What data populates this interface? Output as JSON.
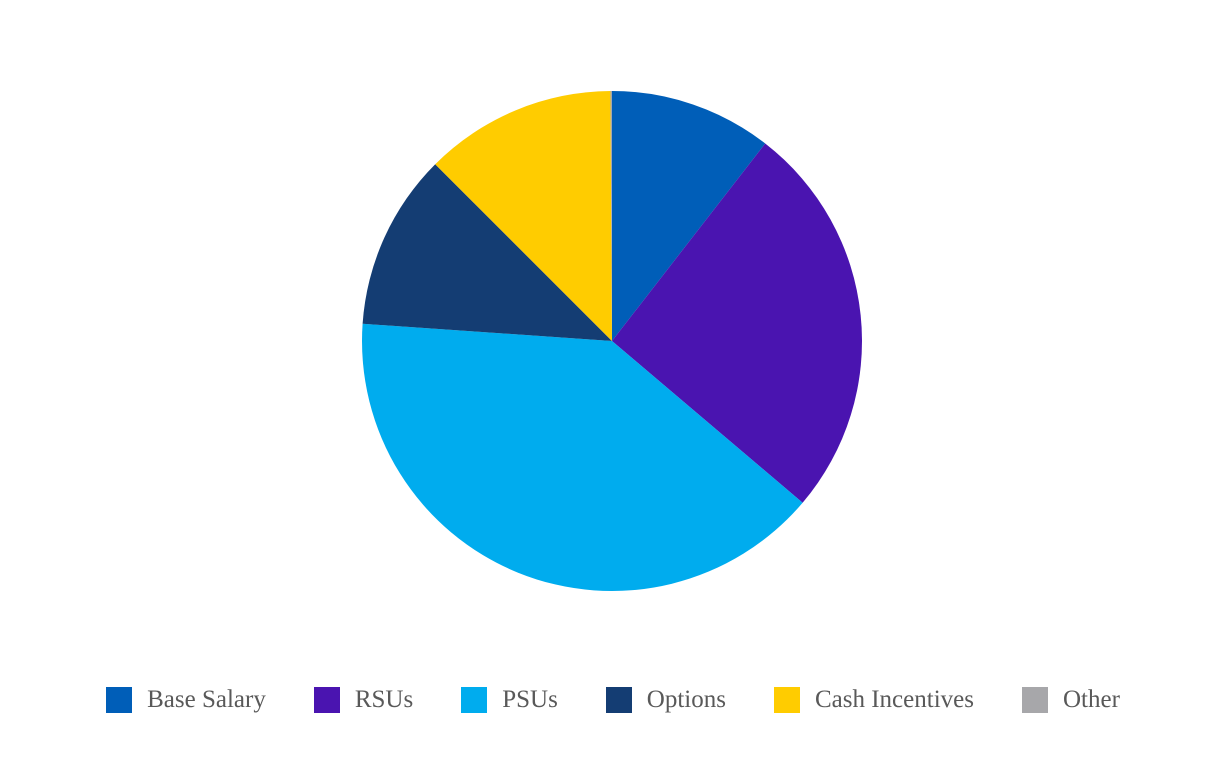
{
  "chart_data": {
    "type": "pie",
    "categories": [
      "Base Salary",
      "RSUs",
      "PSUs",
      "Options",
      "Cash Incentives",
      "Other"
    ],
    "values": [
      10.5,
      25.7,
      39.9,
      11.4,
      12.4,
      0.1
    ],
    "colors": [
      "#005EB8",
      "#4A14B0",
      "#00ACEE",
      "#143D73",
      "#FFCC00",
      "#A7A7AA"
    ],
    "legend": "bottom"
  }
}
